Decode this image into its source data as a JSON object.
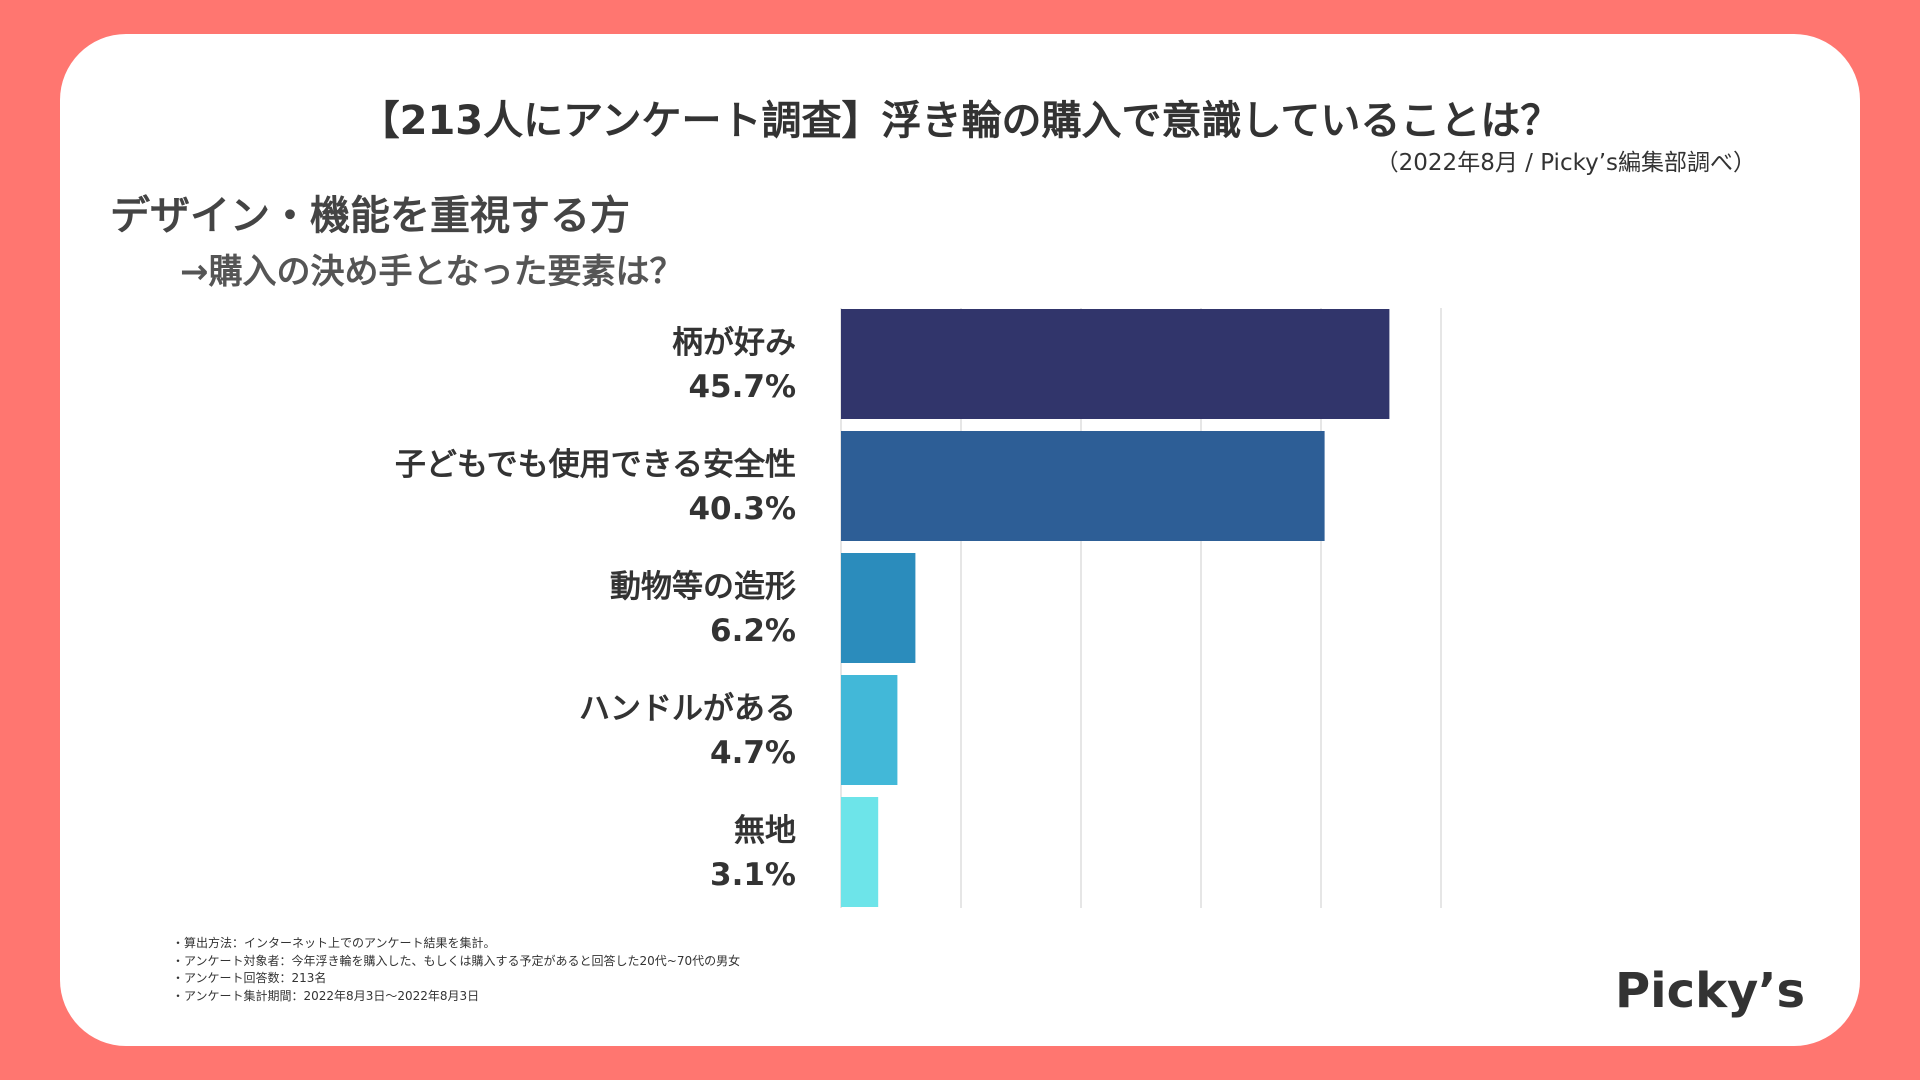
{
  "header": {
    "title": "【213人にアンケート調査】浮き輪の購入で意識していることは？",
    "source": "（2022年8月 / Picky’s編集部調べ）"
  },
  "section": {
    "title": "デザイン・機能を重視する方",
    "subtitle": "→購入の決め手となった要素は？"
  },
  "chart_data": {
    "type": "bar",
    "orientation": "horizontal",
    "categories": [
      "柄が好み",
      "子どもでも使用できる安全性",
      "動物等の造形",
      "ハンドルがある",
      "無地"
    ],
    "values": [
      45.7,
      40.3,
      6.2,
      4.7,
      3.1
    ],
    "value_labels": [
      "45.7%",
      "40.3%",
      "6.2%",
      "4.7%",
      "3.1%"
    ],
    "unit": "%",
    "xlim": [
      0,
      50
    ],
    "grid": true,
    "colors": [
      "#31356B",
      "#2D5E96",
      "#2B8CBC",
      "#42B8D8",
      "#6DE4E9"
    ]
  },
  "footnotes": [
    "・算出方法：インターネット上でのアンケート結果を集計。",
    "・アンケート対象者：今年浮き輪を購入した、もしくは購入する予定があると回答した20代~70代の男女",
    "・アンケート回答数：213名",
    "・アンケート集計期間：2022年8月3日〜2022年8月3日"
  ],
  "brand": {
    "logo_text": "Picky’s"
  },
  "colors": {
    "frame": "#FF7670",
    "card": "#FFFFFF",
    "grid": "#DDDDDD",
    "text": "#333333"
  }
}
